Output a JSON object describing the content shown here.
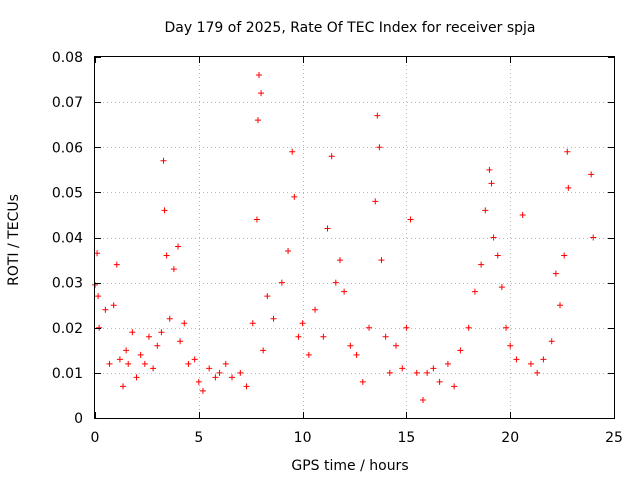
{
  "chart_data": {
    "type": "scatter",
    "title": "Day 179 of 2025, Rate Of TEC Index for receiver spja",
    "xlabel": "GPS time / hours",
    "ylabel": "ROTI / TECUs",
    "xlim": [
      0,
      25
    ],
    "ylim": [
      0,
      0.08
    ],
    "xticks": [
      0,
      5,
      10,
      15,
      20,
      25
    ],
    "xtick_labels": [
      "0",
      "5",
      "10",
      "15",
      "20",
      "25"
    ],
    "yticks": [
      0,
      0.01,
      0.02,
      0.03,
      0.04,
      0.05,
      0.06,
      0.07,
      0.08
    ],
    "ytick_labels": [
      "0",
      "0.01",
      "0.02",
      "0.03",
      "0.04",
      "0.05",
      "0.06",
      "0.07",
      "0.08"
    ],
    "grid": true,
    "marker": "+",
    "color": "#ff0000",
    "series": [
      {
        "name": "ROTI",
        "x": [
          0.0,
          0.1,
          0.15,
          0.2,
          0.5,
          0.7,
          0.9,
          1.05,
          1.2,
          1.35,
          1.5,
          1.6,
          1.8,
          2.0,
          2.2,
          2.4,
          2.6,
          2.8,
          3.0,
          3.2,
          3.3,
          3.35,
          3.45,
          3.6,
          3.8,
          4.0,
          4.1,
          4.3,
          4.5,
          4.8,
          5.0,
          5.2,
          5.5,
          5.8,
          6.0,
          6.3,
          6.6,
          7.0,
          7.3,
          7.6,
          7.8,
          7.85,
          7.9,
          8.0,
          8.1,
          8.3,
          8.6,
          9.0,
          9.3,
          9.5,
          9.6,
          9.8,
          10.0,
          10.3,
          10.6,
          11.0,
          11.2,
          11.4,
          11.6,
          11.8,
          12.0,
          12.3,
          12.6,
          12.9,
          13.2,
          13.5,
          13.6,
          13.7,
          13.8,
          14.0,
          14.2,
          14.5,
          14.8,
          15.0,
          15.2,
          15.5,
          15.8,
          16.0,
          16.3,
          16.6,
          17.0,
          17.3,
          17.6,
          18.0,
          18.3,
          18.6,
          18.8,
          19.0,
          19.1,
          19.2,
          19.4,
          19.6,
          19.8,
          20.0,
          20.3,
          20.6,
          21.0,
          21.3,
          21.6,
          22.0,
          22.2,
          22.4,
          22.6,
          22.75,
          22.8,
          23.9,
          24.0
        ],
        "y": [
          0.0295,
          0.0365,
          0.027,
          0.02,
          0.024,
          0.012,
          0.025,
          0.034,
          0.013,
          0.007,
          0.015,
          0.012,
          0.019,
          0.009,
          0.014,
          0.012,
          0.018,
          0.011,
          0.016,
          0.019,
          0.057,
          0.046,
          0.036,
          0.022,
          0.033,
          0.038,
          0.017,
          0.021,
          0.012,
          0.013,
          0.008,
          0.006,
          0.011,
          0.009,
          0.01,
          0.012,
          0.009,
          0.01,
          0.007,
          0.021,
          0.044,
          0.066,
          0.076,
          0.072,
          0.015,
          0.027,
          0.022,
          0.03,
          0.037,
          0.059,
          0.049,
          0.018,
          0.021,
          0.014,
          0.024,
          0.018,
          0.042,
          0.058,
          0.03,
          0.035,
          0.028,
          0.016,
          0.014,
          0.008,
          0.02,
          0.048,
          0.067,
          0.06,
          0.035,
          0.018,
          0.01,
          0.016,
          0.011,
          0.02,
          0.044,
          0.01,
          0.004,
          0.01,
          0.011,
          0.008,
          0.012,
          0.007,
          0.015,
          0.02,
          0.028,
          0.034,
          0.046,
          0.055,
          0.052,
          0.04,
          0.036,
          0.029,
          0.02,
          0.016,
          0.013,
          0.045,
          0.012,
          0.01,
          0.013,
          0.017,
          0.032,
          0.025,
          0.036,
          0.059,
          0.051,
          0.054,
          0.04
        ]
      }
    ]
  }
}
